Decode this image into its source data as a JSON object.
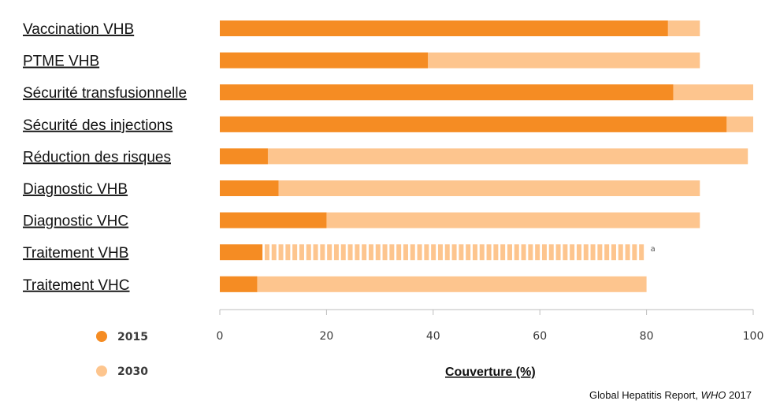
{
  "colors": {
    "c2015": "#f58c23",
    "c2030": "#fdc58e",
    "axis": "#bdbdbd",
    "text": "#111111"
  },
  "chart_data": {
    "type": "bar",
    "orientation": "horizontal",
    "stacked_overlay": true,
    "categories": [
      "Vaccination VHB",
      "PTME VHB",
      "Sécurité transfusionnelle",
      "Sécurité des injections",
      "Réduction des risques",
      "Diagnostic VHB",
      "Diagnostic VHC",
      "Traitement VHB",
      "Traitement VHC"
    ],
    "series": [
      {
        "name": "2015",
        "values": [
          84,
          39,
          85,
          95,
          9,
          11,
          20,
          8,
          7
        ]
      },
      {
        "name": "2030",
        "values": [
          90,
          90,
          100,
          100,
          99,
          90,
          90,
          80,
          80
        ]
      }
    ],
    "dashed_target_categories": [
      "Traitement VHB"
    ],
    "annotations": [
      {
        "category": "Traitement VHB",
        "text": "a"
      }
    ],
    "xlim": [
      0,
      100
    ],
    "xticks": [
      0,
      20,
      40,
      60,
      80,
      100
    ],
    "xlabel": "Couverture (%)",
    "ylabel": "",
    "legend_position": "bottom-left",
    "grid": false
  },
  "source": {
    "prefix": "Global Hepatitis Report, ",
    "org": "WHO",
    "year": " 2017"
  }
}
